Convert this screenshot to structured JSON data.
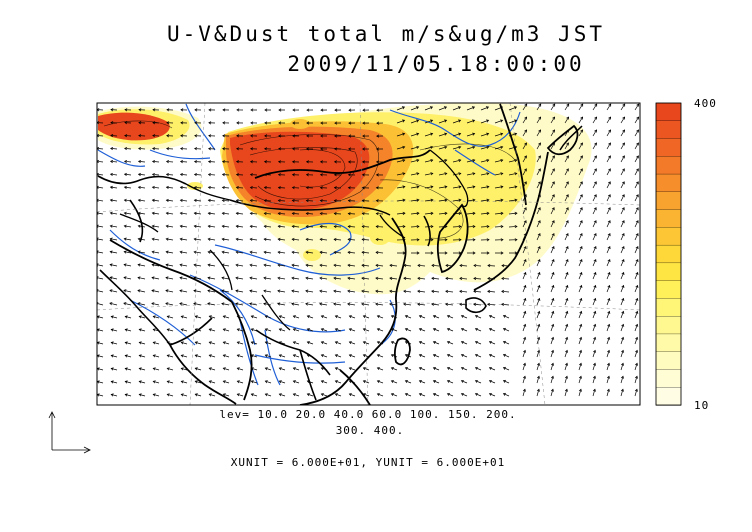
{
  "title": {
    "line1": "U-V&Dust total m/s&ug/m3 JST",
    "line2": "2009/11/05.18:00:00"
  },
  "contour_levels": {
    "line1": "lev= 10.0 20.0 40.0 60.0 100. 150. 200.",
    "line2": "300. 400.",
    "values": [
      10,
      20,
      40,
      60,
      100,
      150,
      200,
      300,
      400
    ]
  },
  "vector_units": "XUNIT = 6.000E+01, YUNIT = 6.000E+01",
  "colorbar": {
    "max_label": "400",
    "min_label": "10",
    "colors": [
      "#e8461c",
      "#ec5620",
      "#f06624",
      "#f37a28",
      "#f68e2c",
      "#f8a22f",
      "#fab432",
      "#fcc634",
      "#fdd838",
      "#fee544",
      "#fff05a",
      "#fff576",
      "#fff890",
      "#fffaa8",
      "#fffcc0",
      "#fffdd4",
      "#fffee4"
    ]
  },
  "map": {
    "land_color": "#ffffff",
    "coast_color": "#000000",
    "river_color": "#1f5fd6",
    "dust_colors": {
      "extreme": "#e8461c",
      "high": "#f4832a",
      "mid": "#fbc033",
      "low": "#fff06a",
      "faint": "#fffbc8"
    }
  }
}
